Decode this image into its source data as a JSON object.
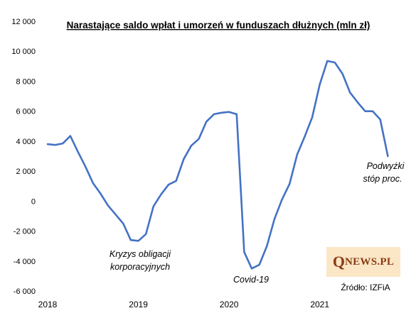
{
  "chart_data": {
    "type": "line",
    "title": "Narastające  saldo wpłat  i umorzeń w funduszach  dłużnych (mln zł)",
    "xlabel": "",
    "ylabel": "",
    "ylim": [
      -6000,
      12000
    ],
    "yticks": [
      12000,
      10000,
      8000,
      6000,
      4000,
      2000,
      0,
      -2000,
      -4000,
      -6000
    ],
    "ytick_labels": [
      "12 000",
      "10 000",
      "8 000",
      "6 000",
      "4 000",
      "2 000",
      "0",
      "-2 000",
      "-4 000",
      "-6 000"
    ],
    "x_tick_labels": [
      "2018",
      "2019",
      "2020",
      "2021"
    ],
    "grid": false,
    "line_color": "#4472c4",
    "series": [
      {
        "x": [
          "2018-01",
          "2018-02",
          "2018-03",
          "2018-04",
          "2018-05",
          "2018-06",
          "2018-07",
          "2018-08",
          "2018-09",
          "2018-10",
          "2018-11",
          "2018-12",
          "2019-01",
          "2019-02",
          "2019-03",
          "2019-04",
          "2019-05",
          "2019-06",
          "2019-07",
          "2019-08",
          "2019-09",
          "2019-10",
          "2019-11",
          "2019-12",
          "2020-01",
          "2020-02",
          "2020-03",
          "2020-04",
          "2020-05",
          "2020-06",
          "2020-07",
          "2020-08",
          "2020-09",
          "2020-10",
          "2020-11",
          "2020-12",
          "2021-01",
          "2021-02",
          "2021-03",
          "2021-04",
          "2021-05",
          "2021-06",
          "2021-07",
          "2021-08",
          "2021-09",
          "2021-10"
        ],
        "values": [
          3800,
          3750,
          3850,
          4350,
          3300,
          2300,
          1200,
          500,
          -300,
          -900,
          -1500,
          -2600,
          -2650,
          -2200,
          -350,
          450,
          1100,
          1350,
          2800,
          3700,
          4150,
          5300,
          5800,
          5900,
          5950,
          5800,
          -3400,
          -4500,
          -4250,
          -3000,
          -1200,
          100,
          1150,
          3100,
          4300,
          5600,
          7800,
          9350,
          9250,
          8500,
          7250,
          6600,
          6000,
          6000,
          5450,
          3000
        ]
      }
    ],
    "annotations": [
      {
        "lines": [
          "Kryzys obligacji",
          "korporacyjnych"
        ]
      },
      {
        "lines": [
          "Covid-19"
        ]
      },
      {
        "lines": [
          "Podwyżki",
          "stóp proc."
        ]
      }
    ],
    "source": "Źródło: IZFiA"
  },
  "brand": {
    "q": "Q",
    "rest": "NEWS.PL"
  }
}
